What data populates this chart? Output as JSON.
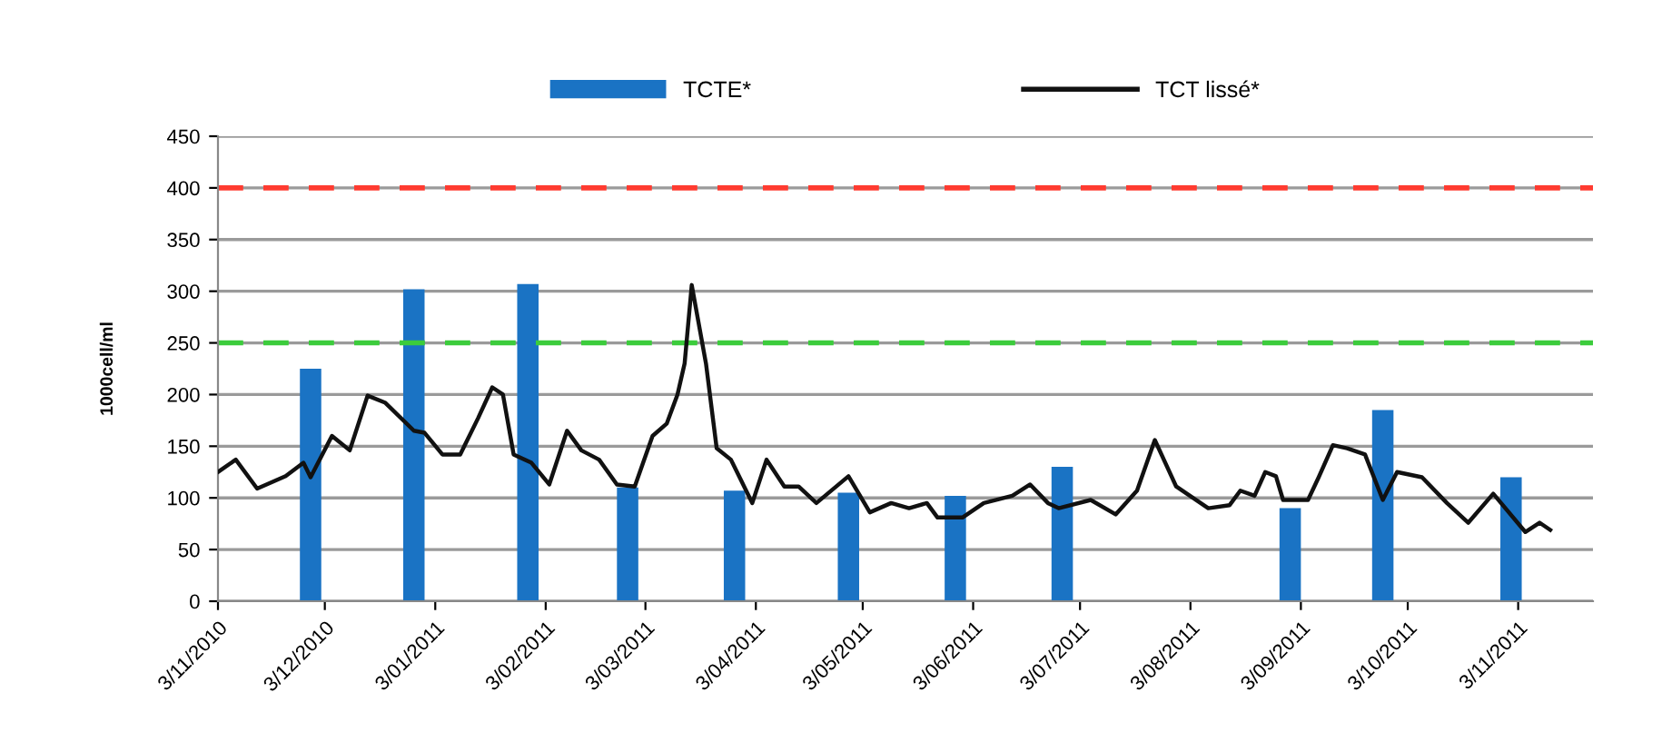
{
  "chart_data": {
    "type": "bar",
    "ylabel": "1000cell/ml",
    "legend": "top",
    "grid": "y",
    "xlim": [
      "2010-11-03",
      "2011-11-24"
    ],
    "xticks": [
      {
        "value": "2010-11-03",
        "label": "3/11/2010"
      },
      {
        "value": "2010-12-03",
        "label": "3/12/2010"
      },
      {
        "value": "2011-01-03",
        "label": "3/01/2011"
      },
      {
        "value": "2011-02-03",
        "label": "3/02/2011"
      },
      {
        "value": "2011-03-03",
        "label": "3/03/2011"
      },
      {
        "value": "2011-04-03",
        "label": "3/04/2011"
      },
      {
        "value": "2011-05-03",
        "label": "3/05/2011"
      },
      {
        "value": "2011-06-03",
        "label": "3/06/2011"
      },
      {
        "value": "2011-07-03",
        "label": "3/07/2011"
      },
      {
        "value": "2011-08-03",
        "label": "3/08/2011"
      },
      {
        "value": "2011-09-03",
        "label": "3/09/2011"
      },
      {
        "value": "2011-10-03",
        "label": "3/10/2011"
      },
      {
        "value": "2011-11-03",
        "label": "3/11/2011"
      }
    ],
    "ylim": [
      0,
      450
    ],
    "yticks": [
      0,
      50,
      100,
      150,
      200,
      250,
      300,
      350,
      400,
      450
    ],
    "ref_lines": [
      {
        "axis": "y",
        "value": 400,
        "color": "#ff3b30",
        "line_style": "dashed"
      },
      {
        "axis": "y",
        "value": 250,
        "color": "#3ccc3c",
        "line_style": "dashed"
      }
    ],
    "series": [
      {
        "name": "TCTE*",
        "color": "#1a73c4",
        "x": [
          "2010-11-29",
          "2010-12-28",
          "2011-01-29",
          "2011-02-26",
          "2011-03-28",
          "2011-04-29",
          "2011-05-29",
          "2011-06-28",
          "2011-08-31",
          "2011-09-26",
          "2011-11-01"
        ],
        "values": [
          225,
          302,
          307,
          110,
          107,
          105,
          102,
          130,
          90,
          185,
          120
        ]
      },
      {
        "name": "TCT lissé*",
        "type": "line",
        "color": "#111111",
        "line_style": "solid",
        "marker": "none",
        "x": [
          "2010-11-03",
          "2010-11-08",
          "2010-11-14",
          "2010-11-22",
          "2010-11-27",
          "2010-11-29",
          "2010-12-05",
          "2010-12-10",
          "2010-12-15",
          "2010-12-20",
          "2010-12-28",
          "2010-12-31",
          "2011-01-05",
          "2011-01-10",
          "2011-01-15",
          "2011-01-19",
          "2011-01-22",
          "2011-01-25",
          "2011-01-30",
          "2011-02-04",
          "2011-02-09",
          "2011-02-13",
          "2011-02-18",
          "2011-02-23",
          "2011-02-28",
          "2011-03-05",
          "2011-03-09",
          "2011-03-12",
          "2011-03-14",
          "2011-03-16",
          "2011-03-20",
          "2011-03-23",
          "2011-03-27",
          "2011-04-02",
          "2011-04-06",
          "2011-04-11",
          "2011-04-15",
          "2011-04-20",
          "2011-04-29",
          "2011-05-05",
          "2011-05-11",
          "2011-05-16",
          "2011-05-21",
          "2011-05-24",
          "2011-05-31",
          "2011-06-06",
          "2011-06-14",
          "2011-06-19",
          "2011-06-24",
          "2011-06-27",
          "2011-07-06",
          "2011-07-13",
          "2011-07-19",
          "2011-07-24",
          "2011-07-30",
          "2011-08-08",
          "2011-08-14",
          "2011-08-17",
          "2011-08-21",
          "2011-08-24",
          "2011-08-27",
          "2011-08-29",
          "2011-09-05",
          "2011-09-08",
          "2011-09-12",
          "2011-09-16",
          "2011-09-21",
          "2011-09-26",
          "2011-09-30",
          "2011-10-07",
          "2011-10-14",
          "2011-10-20",
          "2011-10-27",
          "2011-11-05",
          "2011-11-09",
          "2011-11-12"
        ],
        "values": [
          125,
          137,
          109,
          121,
          134,
          120,
          160,
          146,
          199,
          192,
          165,
          163,
          142,
          142,
          177,
          207,
          200,
          142,
          134,
          113,
          165,
          146,
          137,
          113,
          111,
          160,
          172,
          200,
          230,
          306,
          230,
          148,
          137,
          95,
          137,
          111,
          111,
          95,
          121,
          86,
          95,
          90,
          95,
          81,
          81,
          95,
          102,
          113,
          95,
          90,
          98,
          84,
          107,
          156,
          111,
          90,
          93,
          107,
          102,
          125,
          121,
          98,
          98,
          120,
          151,
          148,
          142,
          98,
          125,
          120,
          95,
          76,
          104,
          67,
          76,
          69
        ]
      }
    ]
  }
}
